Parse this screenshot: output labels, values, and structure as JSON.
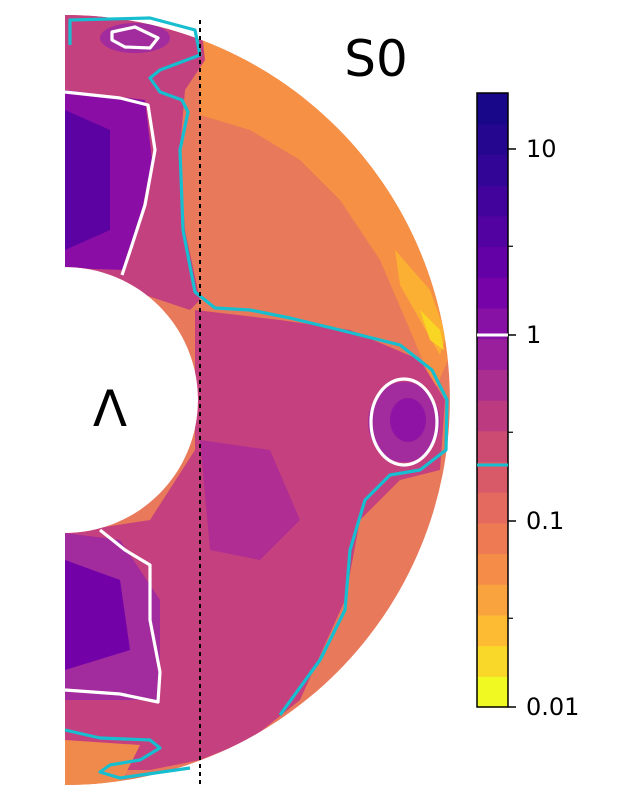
{
  "chart_data": {
    "type": "heatmap",
    "title": "S0",
    "inner_label": "Λ",
    "geometry": "meridional half-annulus (spherical shell, right half)",
    "colormap": "plasma_r",
    "colorbar": {
      "scale": "log",
      "range": [
        0.01,
        20
      ],
      "levels": 20,
      "major_ticks": [
        {
          "value": 0.01,
          "label": "0.01"
        },
        {
          "value": 0.1,
          "label": "0.1"
        },
        {
          "value": 1,
          "label": "1"
        },
        {
          "value": 10,
          "label": "10"
        }
      ],
      "minor_ticks": [
        0.03,
        0.3,
        3
      ],
      "marked_contours": [
        {
          "value": 1,
          "color": "#ffffff"
        },
        {
          "value": 0.2,
          "color": "#17becf"
        }
      ]
    },
    "contours": [
      {
        "level": 1,
        "color": "#ffffff"
      },
      {
        "level": 0.2,
        "color": "#17becf"
      }
    ],
    "dashed_line": {
      "style": "dotted",
      "color": "#000000"
    }
  },
  "colors": {
    "white_contour": "#ffffff",
    "cyan_contour": "#17becf",
    "background": "#ffffff"
  }
}
